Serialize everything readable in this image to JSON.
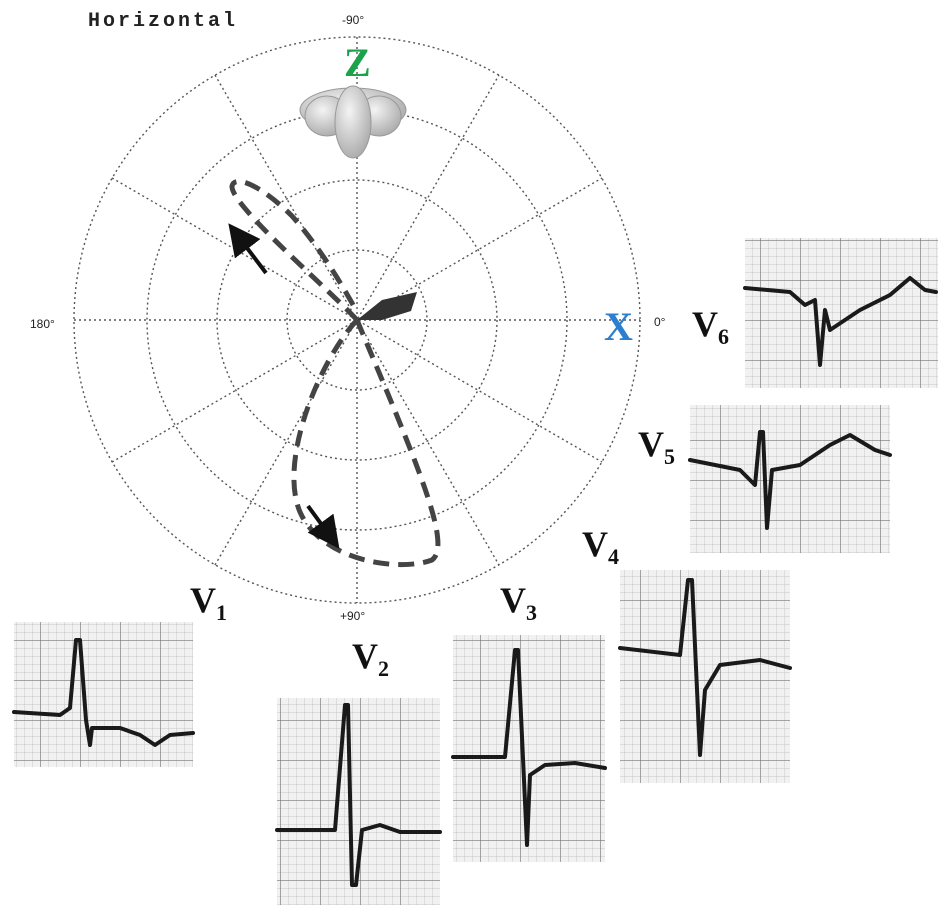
{
  "header": {
    "title": "Horizontal"
  },
  "angles": {
    "top": "-90°",
    "left": "180°",
    "right": "0°",
    "bottom": "+90°"
  },
  "axes": {
    "z": "Z",
    "x": "X"
  },
  "leads": [
    {
      "name": "V",
      "sub": "1"
    },
    {
      "name": "V",
      "sub": "2"
    },
    {
      "name": "V",
      "sub": "3"
    },
    {
      "name": "V",
      "sub": "4"
    },
    {
      "name": "V",
      "sub": "5"
    },
    {
      "name": "V",
      "sub": "6"
    }
  ]
}
